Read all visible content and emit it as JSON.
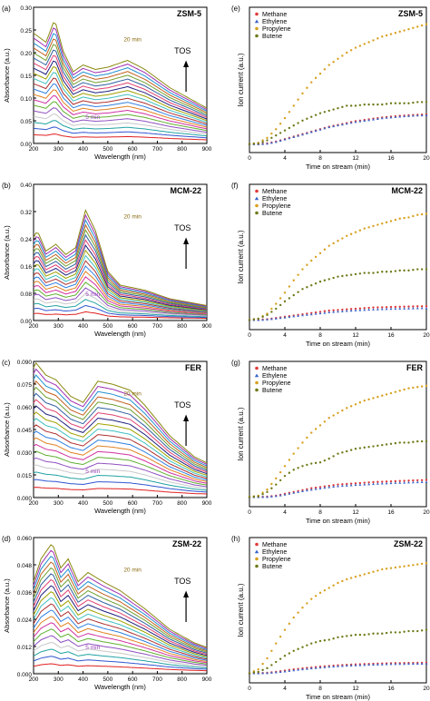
{
  "figure": {
    "uv_panels": [
      {
        "id": "a",
        "tag": "(a)",
        "name": "ZSM-5",
        "ylabel": "Absorbance (a.u.)",
        "xlabel": "Wavelength (nm)",
        "ymax": 0.3,
        "yticks": [
          "0.00",
          "0.05",
          "0.10",
          "0.15",
          "0.20",
          "0.25",
          "0.30"
        ],
        "xticks": [
          "200",
          "300",
          "400",
          "500",
          "600",
          "700",
          "800",
          "900"
        ],
        "label_20": "20 min",
        "label_5": "5 min",
        "tos": "TOS"
      },
      {
        "id": "b",
        "tag": "(b)",
        "name": "MCM-22",
        "ylabel": "Absorbance (a.u.)",
        "xlabel": "Wavelength (nm)",
        "ymax": 0.4,
        "yticks": [
          "0.00",
          "0.08",
          "0.16",
          "0.24",
          "0.32",
          "0.40"
        ],
        "xticks": [
          "200",
          "300",
          "400",
          "500",
          "600",
          "700",
          "800",
          "900"
        ],
        "label_20": "20 min",
        "label_5": "5 min",
        "tos": "TOS"
      },
      {
        "id": "c",
        "tag": "(c)",
        "name": "FER",
        "ylabel": "Absorbance (a.u.)",
        "xlabel": "Wavelength (nm)",
        "ymax": 0.09,
        "yticks": [
          "0.000",
          "0.015",
          "0.030",
          "0.045",
          "0.060",
          "0.075",
          "0.090"
        ],
        "xticks": [
          "200",
          "300",
          "400",
          "500",
          "600",
          "700",
          "800",
          "900"
        ],
        "label_20": "20 min",
        "label_5": "5 min",
        "tos": "TOS"
      },
      {
        "id": "d",
        "tag": "(d)",
        "name": "ZSM-22",
        "ylabel": "Absorbance (a.u.)",
        "xlabel": "Wavelength (nm)",
        "ymax": 0.06,
        "yticks": [
          "0.000",
          "0.012",
          "0.024",
          "0.036",
          "0.048",
          "0.060"
        ],
        "xticks": [
          "200",
          "300",
          "400",
          "500",
          "600",
          "700",
          "800",
          "900"
        ],
        "label_20": "20 min",
        "label_5": "5 min",
        "tos": "TOS"
      }
    ],
    "ms_panels": [
      {
        "id": "e",
        "tag": "(e)",
        "name": "ZSM-5",
        "ylabel": "Ion current (a.u.)",
        "xlabel": "Time on stream (min)",
        "xticks": [
          "0",
          "4",
          "8",
          "12",
          "16",
          "20"
        ]
      },
      {
        "id": "f",
        "tag": "(f)",
        "name": "MCM-22",
        "ylabel": "Ion current (a.u.)",
        "xlabel": "Time on stream (min)",
        "xticks": [
          "0",
          "4",
          "8",
          "12",
          "16",
          "20"
        ]
      },
      {
        "id": "g",
        "tag": "(g)",
        "name": "FER",
        "ylabel": "Ion current (a.u.)",
        "xlabel": "Time on stream (min)",
        "xticks": [
          "0",
          "4",
          "8",
          "12",
          "16",
          "20"
        ]
      },
      {
        "id": "h",
        "tag": "(h)",
        "name": "ZSM-22",
        "ylabel": "Ion current (a.u.)",
        "xlabel": "Time on stream (min)",
        "xticks": [
          "0",
          "4",
          "8",
          "12",
          "16",
          "20"
        ]
      }
    ],
    "legend": [
      "Methane",
      "Ethylene",
      "Propylene",
      "Butene"
    ]
  },
  "chart_data": [
    {
      "type": "line",
      "panel": "a",
      "title": "ZSM-5",
      "xlabel": "Wavelength (nm)",
      "ylabel": "Absorbance (a.u.)",
      "xlim": [
        200,
        900
      ],
      "ylim": [
        0,
        0.3
      ],
      "note": "spectra series at increasing time on stream up to 20 min",
      "peaks_nm": [
        285,
        400,
        450,
        580
      ],
      "final_spectrum": {
        "x": [
          200,
          250,
          285,
          320,
          360,
          400,
          450,
          500,
          580,
          650,
          750,
          850,
          900
        ],
        "y": [
          0.24,
          0.22,
          0.27,
          0.2,
          0.155,
          0.17,
          0.16,
          0.165,
          0.18,
          0.16,
          0.12,
          0.09,
          0.075
        ]
      }
    },
    {
      "type": "line",
      "panel": "b",
      "title": "MCM-22",
      "xlabel": "Wavelength (nm)",
      "ylabel": "Absorbance (a.u.)",
      "xlim": [
        200,
        900
      ],
      "ylim": [
        0,
        0.4
      ],
      "note": "spectra series at increasing time on stream up to 20 min",
      "peaks_nm": [
        215,
        290,
        410
      ],
      "final_spectrum": {
        "x": [
          200,
          215,
          250,
          290,
          330,
          370,
          410,
          450,
          500,
          550,
          650,
          750,
          900
        ],
        "y": [
          0.24,
          0.26,
          0.2,
          0.22,
          0.19,
          0.21,
          0.32,
          0.26,
          0.14,
          0.1,
          0.085,
          0.06,
          0.04
        ]
      }
    },
    {
      "type": "line",
      "panel": "c",
      "title": "FER",
      "xlabel": "Wavelength (nm)",
      "ylabel": "Absorbance (a.u.)",
      "xlim": [
        200,
        900
      ],
      "ylim": [
        0,
        0.09
      ],
      "note": "spectra series at increasing time on stream up to 20 min",
      "peaks_nm": [
        210,
        290,
        460,
        590
      ],
      "final_spectrum": {
        "x": [
          200,
          210,
          250,
          290,
          350,
          400,
          460,
          520,
          590,
          650,
          750,
          850,
          900
        ],
        "y": [
          0.085,
          0.088,
          0.08,
          0.077,
          0.066,
          0.062,
          0.076,
          0.074,
          0.07,
          0.06,
          0.04,
          0.026,
          0.022
        ]
      }
    },
    {
      "type": "line",
      "panel": "d",
      "title": "ZSM-22",
      "xlabel": "Wavelength (nm)",
      "ylabel": "Absorbance (a.u.)",
      "xlim": [
        200,
        900
      ],
      "ylim": [
        0,
        0.06
      ],
      "note": "spectra series at increasing time on stream up to 20 min",
      "peaks_nm": [
        230,
        275,
        340,
        420
      ],
      "final_spectrum": {
        "x": [
          200,
          230,
          275,
          310,
          340,
          380,
          420,
          480,
          550,
          650,
          750,
          850,
          900
        ],
        "y": [
          0.04,
          0.05,
          0.057,
          0.046,
          0.05,
          0.04,
          0.044,
          0.04,
          0.036,
          0.028,
          0.019,
          0.013,
          0.011
        ]
      }
    },
    {
      "type": "scatter",
      "panel": "e",
      "title": "ZSM-5",
      "xlabel": "Time on stream (min)",
      "ylabel": "Ion current (a.u.)",
      "xlim": [
        0,
        20
      ],
      "x": [
        0,
        1,
        2,
        3,
        4,
        5,
        6,
        7,
        8,
        9,
        10,
        11,
        12,
        13,
        14,
        15,
        16,
        17,
        18,
        19,
        20
      ],
      "series": [
        {
          "name": "Methane",
          "values": [
            0.01,
            0.01,
            0.015,
            0.03,
            0.05,
            0.07,
            0.09,
            0.11,
            0.13,
            0.15,
            0.165,
            0.18,
            0.195,
            0.205,
            0.215,
            0.225,
            0.232,
            0.238,
            0.243,
            0.247,
            0.25
          ]
        },
        {
          "name": "Ethylene",
          "values": [
            0.01,
            0.01,
            0.014,
            0.028,
            0.048,
            0.068,
            0.088,
            0.108,
            0.128,
            0.148,
            0.162,
            0.176,
            0.19,
            0.2,
            0.21,
            0.22,
            0.227,
            0.233,
            0.238,
            0.242,
            0.245
          ]
        },
        {
          "name": "Propylene",
          "values": [
            0.01,
            0.02,
            0.06,
            0.13,
            0.22,
            0.32,
            0.42,
            0.51,
            0.58,
            0.65,
            0.7,
            0.75,
            0.79,
            0.82,
            0.85,
            0.88,
            0.9,
            0.92,
            0.94,
            0.96,
            0.98
          ]
        },
        {
          "name": "Butene",
          "values": [
            0.01,
            0.015,
            0.04,
            0.08,
            0.12,
            0.16,
            0.2,
            0.23,
            0.26,
            0.28,
            0.3,
            0.32,
            0.32,
            0.33,
            0.33,
            0.33,
            0.34,
            0.34,
            0.34,
            0.35,
            0.35
          ]
        }
      ]
    },
    {
      "type": "scatter",
      "panel": "f",
      "title": "MCM-22",
      "xlabel": "Time on stream (min)",
      "ylabel": "Ion current (a.u.)",
      "xlim": [
        0,
        20
      ],
      "x": [
        0,
        1,
        2,
        3,
        4,
        5,
        6,
        7,
        8,
        9,
        10,
        11,
        12,
        13,
        14,
        15,
        16,
        17,
        18,
        19,
        20
      ],
      "series": [
        {
          "name": "Methane",
          "values": [
            0.02,
            0.02,
            0.025,
            0.035,
            0.045,
            0.055,
            0.065,
            0.075,
            0.085,
            0.095,
            0.1,
            0.105,
            0.11,
            0.115,
            0.12,
            0.122,
            0.124,
            0.126,
            0.128,
            0.13,
            0.13
          ]
        },
        {
          "name": "Ethylene",
          "values": [
            0.02,
            0.02,
            0.024,
            0.032,
            0.04,
            0.05,
            0.058,
            0.066,
            0.074,
            0.082,
            0.088,
            0.093,
            0.098,
            0.102,
            0.105,
            0.108,
            0.11,
            0.112,
            0.114,
            0.115,
            0.115
          ]
        },
        {
          "name": "Propylene",
          "values": [
            0.02,
            0.03,
            0.07,
            0.15,
            0.24,
            0.34,
            0.43,
            0.5,
            0.56,
            0.62,
            0.66,
            0.7,
            0.73,
            0.76,
            0.78,
            0.8,
            0.82,
            0.84,
            0.85,
            0.87,
            0.88
          ]
        },
        {
          "name": "Butene",
          "values": [
            0.02,
            0.03,
            0.06,
            0.11,
            0.17,
            0.22,
            0.27,
            0.3,
            0.33,
            0.35,
            0.37,
            0.38,
            0.39,
            0.4,
            0.4,
            0.41,
            0.41,
            0.42,
            0.42,
            0.43,
            0.43
          ]
        }
      ]
    },
    {
      "type": "scatter",
      "panel": "g",
      "title": "FER",
      "xlabel": "Time on stream (min)",
      "ylabel": "Ion current (a.u.)",
      "xlim": [
        0,
        20
      ],
      "x": [
        0,
        1,
        2,
        3,
        4,
        5,
        6,
        7,
        8,
        9,
        10,
        11,
        12,
        13,
        14,
        15,
        16,
        17,
        18,
        19,
        20
      ],
      "series": [
        {
          "name": "Methane",
          "values": [
            0.02,
            0.02,
            0.022,
            0.03,
            0.045,
            0.06,
            0.075,
            0.09,
            0.1,
            0.11,
            0.12,
            0.125,
            0.13,
            0.135,
            0.14,
            0.143,
            0.146,
            0.149,
            0.152,
            0.155,
            0.157
          ]
        },
        {
          "name": "Ethylene",
          "values": [
            0.02,
            0.02,
            0.021,
            0.028,
            0.04,
            0.055,
            0.068,
            0.08,
            0.09,
            0.1,
            0.108,
            0.113,
            0.118,
            0.122,
            0.126,
            0.13,
            0.133,
            0.136,
            0.138,
            0.14,
            0.142
          ]
        },
        {
          "name": "Propylene",
          "values": [
            0.02,
            0.03,
            0.08,
            0.17,
            0.27,
            0.37,
            0.46,
            0.54,
            0.6,
            0.66,
            0.7,
            0.74,
            0.77,
            0.8,
            0.82,
            0.84,
            0.86,
            0.88,
            0.9,
            0.91,
            0.92
          ]
        },
        {
          "name": "Butene",
          "values": [
            0.02,
            0.025,
            0.06,
            0.12,
            0.19,
            0.24,
            0.27,
            0.29,
            0.3,
            0.33,
            0.37,
            0.39,
            0.41,
            0.42,
            0.43,
            0.44,
            0.45,
            0.46,
            0.46,
            0.47,
            0.47
          ]
        }
      ]
    },
    {
      "type": "scatter",
      "panel": "h",
      "title": "ZSM-22",
      "xlabel": "Time on stream (min)",
      "ylabel": "Ion current (a.u.)",
      "xlim": [
        0,
        20
      ],
      "x": [
        0,
        1,
        2,
        3,
        4,
        5,
        6,
        7,
        8,
        9,
        10,
        11,
        12,
        13,
        14,
        15,
        16,
        17,
        18,
        19,
        20
      ],
      "series": [
        {
          "name": "Methane",
          "values": [
            0.02,
            0.02,
            0.022,
            0.03,
            0.04,
            0.05,
            0.058,
            0.065,
            0.072,
            0.078,
            0.083,
            0.087,
            0.09,
            0.093,
            0.096,
            0.098,
            0.1,
            0.101,
            0.102,
            0.103,
            0.104
          ]
        },
        {
          "name": "Ethylene",
          "values": [
            0.02,
            0.02,
            0.021,
            0.027,
            0.035,
            0.044,
            0.052,
            0.059,
            0.066,
            0.072,
            0.077,
            0.081,
            0.084,
            0.087,
            0.09,
            0.092,
            0.094,
            0.095,
            0.096,
            0.097,
            0.098
          ]
        },
        {
          "name": "Propylene",
          "values": [
            0.02,
            0.05,
            0.14,
            0.26,
            0.37,
            0.47,
            0.55,
            0.62,
            0.67,
            0.71,
            0.75,
            0.78,
            0.8,
            0.82,
            0.84,
            0.86,
            0.87,
            0.88,
            0.89,
            0.9,
            0.91
          ]
        },
        {
          "name": "Butene",
          "values": [
            0.02,
            0.03,
            0.06,
            0.11,
            0.16,
            0.2,
            0.23,
            0.26,
            0.28,
            0.29,
            0.31,
            0.32,
            0.33,
            0.33,
            0.34,
            0.34,
            0.35,
            0.35,
            0.36,
            0.36,
            0.37
          ]
        }
      ]
    }
  ],
  "colors": {
    "methane": "#e23a3a",
    "ethylene": "#3a64c8",
    "propylene": "#d8a020",
    "butene": "#707a1a",
    "axis": "#000000",
    "annot": "#8a6a10"
  }
}
